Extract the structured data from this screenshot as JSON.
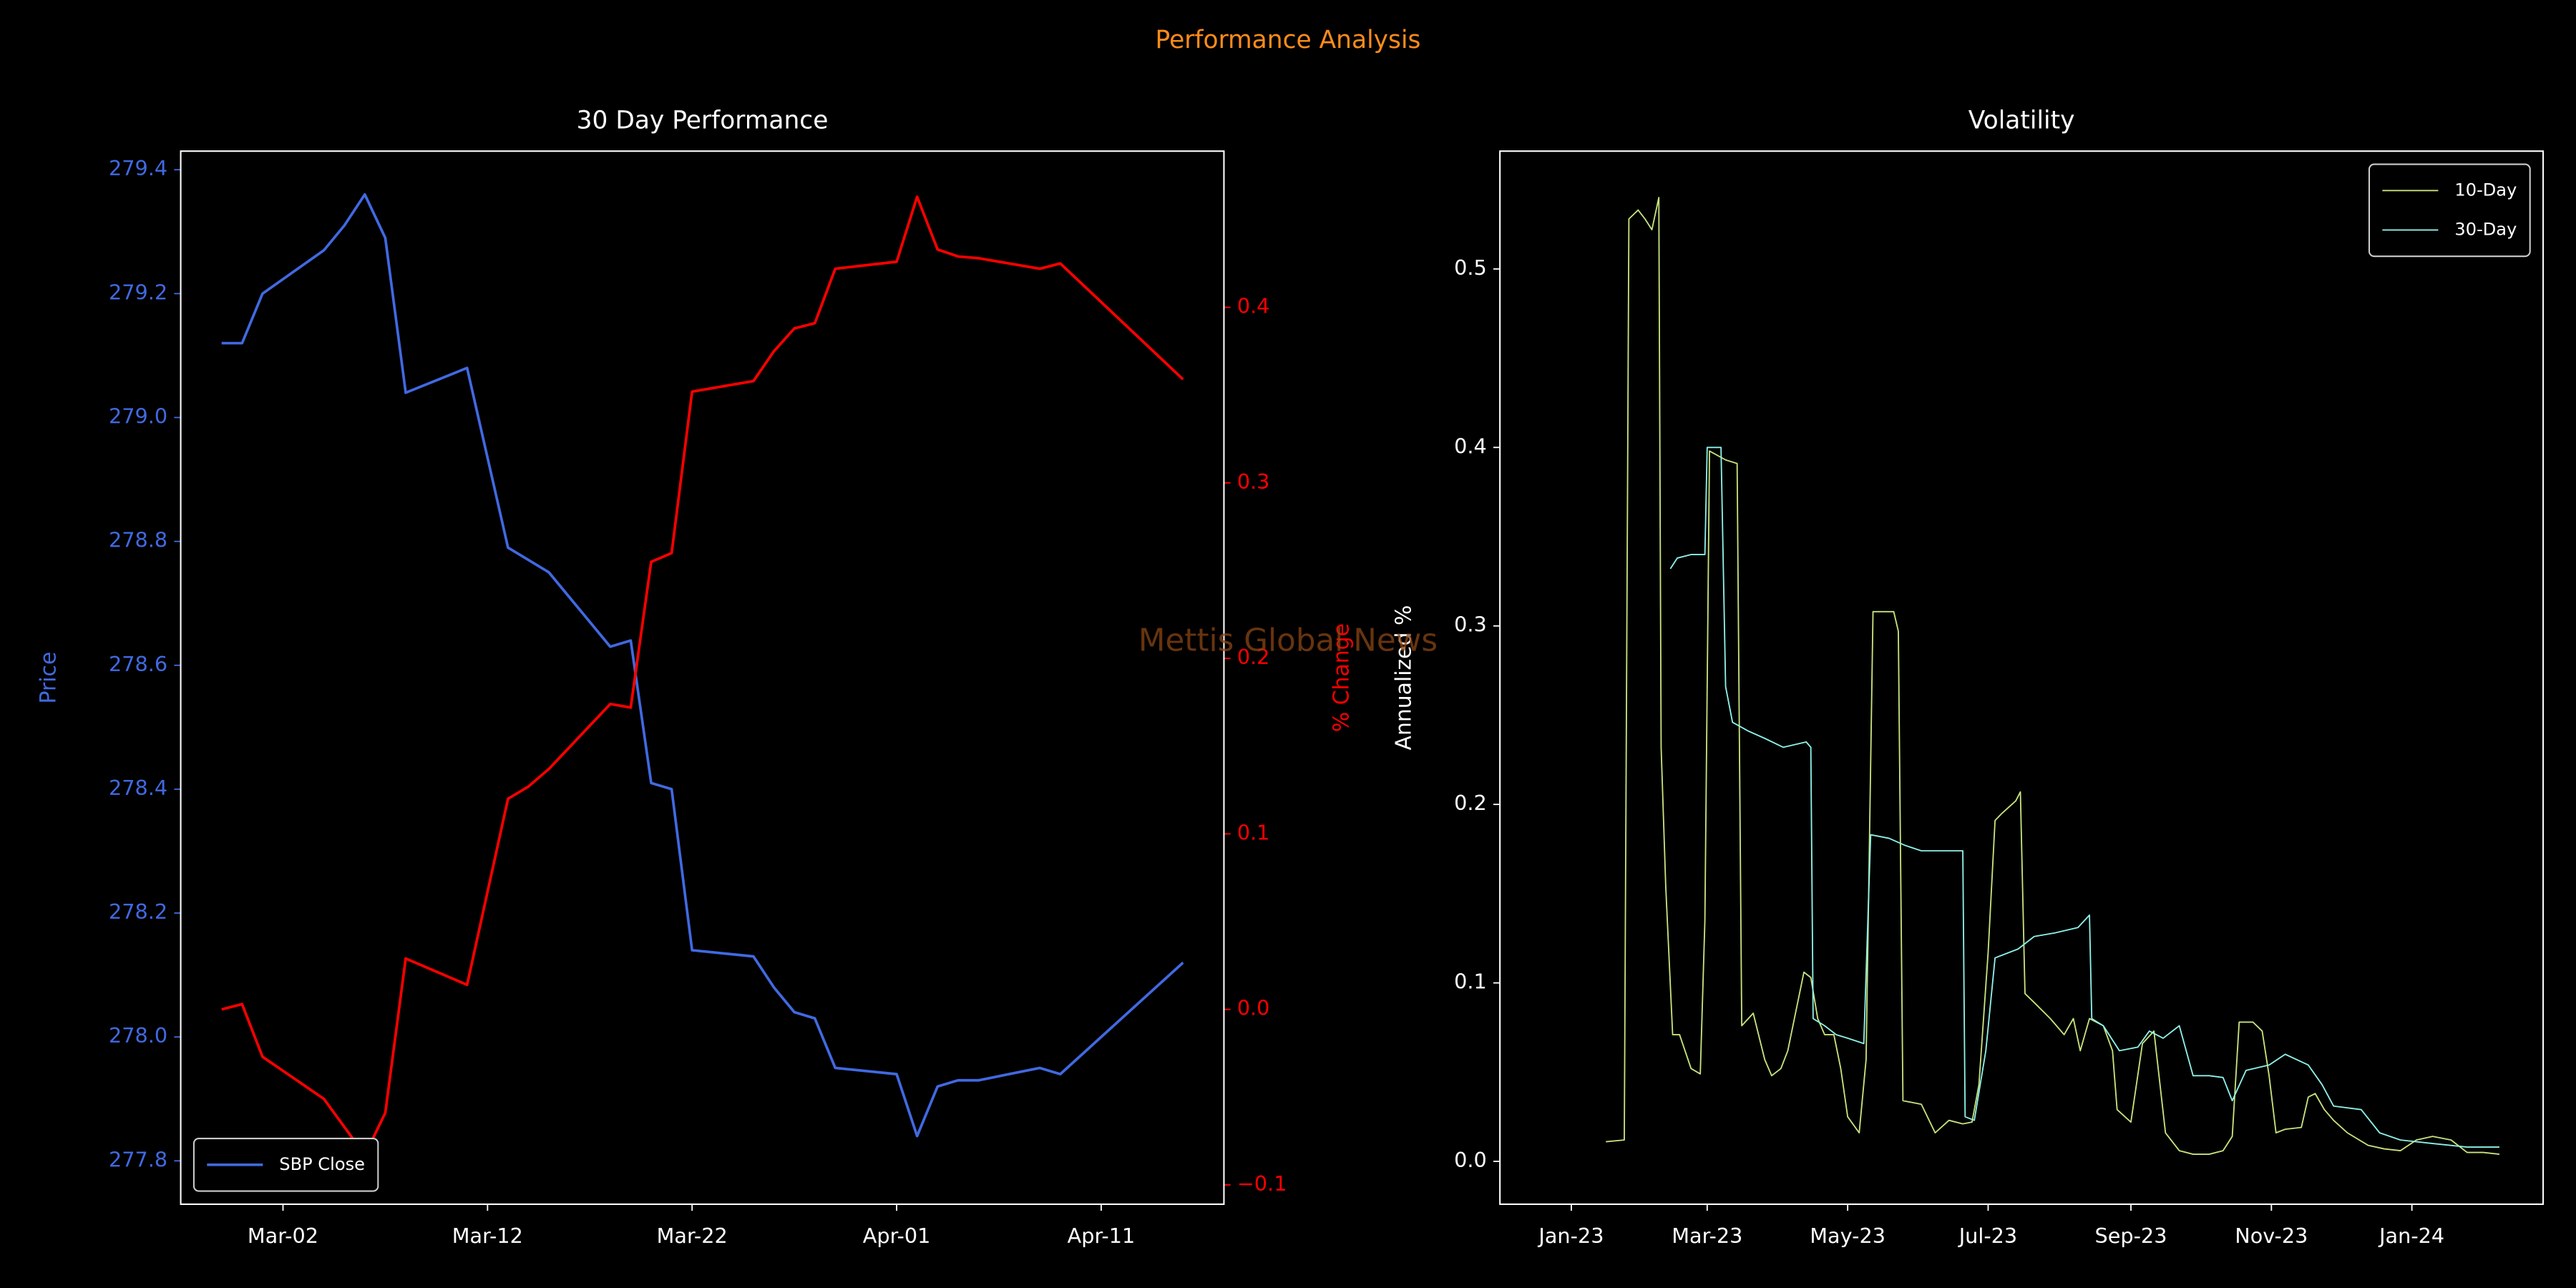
{
  "title": "Performance Analysis",
  "watermark": "Mettis Global News",
  "chart_data": [
    {
      "type": "line",
      "title": "30 Day Performance",
      "ylabel": "Price",
      "y2label": "% Change",
      "legend": "lower left",
      "x": [
        "Feb-28",
        "Feb-29",
        "Mar-01",
        "Mar-04",
        "Mar-05",
        "Mar-06",
        "Mar-07",
        "Mar-08",
        "Mar-11",
        "Mar-13",
        "Mar-14",
        "Mar-15",
        "Mar-18",
        "Mar-19",
        "Mar-20",
        "Mar-21",
        "Mar-22",
        "Mar-25",
        "Mar-26",
        "Mar-27",
        "Mar-28",
        "Mar-29",
        "Apr-01",
        "Apr-02",
        "Apr-03",
        "Apr-04",
        "Apr-05",
        "Apr-08",
        "Apr-09",
        "Apr-15"
      ],
      "series": [
        {
          "name": "SBP Close",
          "color": "#4169e1",
          "values": [
            279.12,
            279.12,
            279.2,
            279.27,
            279.31,
            279.36,
            279.29,
            279.04,
            279.08,
            278.79,
            278.77,
            278.75,
            278.63,
            278.64,
            278.41,
            278.4,
            278.14,
            278.13,
            278.08,
            278.04,
            278.03,
            277.95,
            277.94,
            277.84,
            277.92,
            277.93,
            277.93,
            277.95,
            277.94,
            278.12
          ]
        },
        {
          "color": "#ff0000",
          "axis": "y2",
          "values": [
            0.0,
            0.003,
            -0.027,
            -0.051,
            -0.067,
            -0.083,
            -0.059,
            0.029,
            0.014,
            0.12,
            0.127,
            0.137,
            0.174,
            0.172,
            0.255,
            0.26,
            0.352,
            0.358,
            0.375,
            0.388,
            0.391,
            0.422,
            0.426,
            0.463,
            0.433,
            0.429,
            0.428,
            0.422,
            0.425,
            0.359
          ]
        }
      ],
      "xlim": [
        "Feb-26",
        "Apr-17"
      ],
      "xticks": [
        "Mar-02",
        "Mar-12",
        "Mar-22",
        "Apr-01",
        "Apr-11"
      ],
      "ylim": [
        277.73,
        279.43
      ],
      "yticks": [
        277.8,
        {
          "value": 278,
          "label": "278.0"
        },
        278.2,
        278.4,
        278.6,
        278.8,
        {
          "value": 279,
          "label": "279.0"
        },
        279.2,
        279.4
      ],
      "y2lim": [
        -0.111,
        0.489
      ],
      "y2ticks": [
        {
          "value": -0.1,
          "label": "−0.1"
        },
        {
          "value": 0,
          "label": "0.0"
        },
        0.1,
        0.2,
        0.3,
        0.4
      ]
    },
    {
      "type": "line",
      "title": "Volatility",
      "ylabel": "Annualized %",
      "legend": "upper right",
      "series": [
        {
          "name": "10-Day",
          "color": "#c7e37d",
          "x": [
            "2023-01-16",
            "2023-01-24",
            "2023-01-26",
            "2023-01-30",
            "2023-02-02",
            "2023-02-05",
            "2023-02-08",
            "2023-02-09",
            "2023-02-11",
            "2023-02-14",
            "2023-02-17",
            "2023-02-22",
            "2023-02-26",
            "2023-02-28",
            "2023-03-02",
            "2023-03-09",
            "2023-03-14",
            "2023-03-16",
            "2023-03-21",
            "2023-03-26",
            "2023-03-29",
            "2023-04-02",
            "2023-04-05",
            "2023-04-12",
            "2023-04-15",
            "2023-04-18",
            "2023-04-21",
            "2023-04-25",
            "2023-04-28",
            "2023-05-01",
            "2023-05-06",
            "2023-05-09",
            "2023-05-12",
            "2023-05-21",
            "2023-05-23",
            "2023-05-25",
            "2023-06-02",
            "2023-06-08",
            "2023-06-14",
            "2023-06-20",
            "2023-06-24",
            "2023-06-27",
            "2023-07-01",
            "2023-07-04",
            "2023-07-07",
            "2023-07-13",
            "2023-07-15",
            "2023-07-17",
            "2023-07-21",
            "2023-07-28",
            "2023-08-03",
            "2023-08-07",
            "2023-08-10",
            "2023-08-14",
            "2023-08-20",
            "2023-08-24",
            "2023-08-26",
            "2023-09-01",
            "2023-09-06",
            "2023-09-11",
            "2023-09-16",
            "2023-09-22",
            "2023-09-28",
            "2023-10-05",
            "2023-10-11",
            "2023-10-15",
            "2023-10-18",
            "2023-10-24",
            "2023-10-28",
            "2023-10-31",
            "2023-11-03",
            "2023-11-07",
            "2023-11-14",
            "2023-11-17",
            "2023-11-20",
            "2023-11-24",
            "2023-11-28",
            "2023-12-04",
            "2023-12-13",
            "2023-12-20",
            "2023-12-27",
            "2024-01-03",
            "2024-01-10",
            "2024-01-18",
            "2024-01-25",
            "2024-02-01",
            "2024-02-08"
          ],
          "values": [
            0.011,
            0.012,
            0.528,
            0.533,
            0.528,
            0.522,
            0.54,
            0.232,
            0.154,
            0.071,
            0.071,
            0.052,
            0.049,
            0.135,
            0.398,
            0.393,
            0.391,
            0.076,
            0.083,
            0.057,
            0.048,
            0.052,
            0.062,
            0.106,
            0.103,
            0.08,
            0.071,
            0.071,
            0.052,
            0.025,
            0.016,
            0.057,
            0.308,
            0.308,
            0.297,
            0.034,
            0.032,
            0.016,
            0.023,
            0.021,
            0.022,
            0.043,
            0.117,
            0.191,
            0.195,
            0.202,
            0.207,
            0.094,
            0.089,
            0.08,
            0.071,
            0.08,
            0.062,
            0.08,
            0.076,
            0.062,
            0.029,
            0.022,
            0.066,
            0.073,
            0.016,
            0.006,
            0.004,
            0.004,
            0.006,
            0.014,
            0.078,
            0.078,
            0.073,
            0.048,
            0.016,
            0.018,
            0.019,
            0.036,
            0.038,
            0.029,
            0.023,
            0.016,
            0.009,
            0.007,
            0.006,
            0.012,
            0.014,
            0.012,
            0.005,
            0.005,
            0.004
          ]
        },
        {
          "name": "30-Day",
          "color": "#8df2ea",
          "x": [
            "2023-02-13",
            "2023-02-16",
            "2023-02-22",
            "2023-02-28",
            "2023-03-01",
            "2023-03-07",
            "2023-03-09",
            "2023-03-12",
            "2023-03-19",
            "2023-03-26",
            "2023-04-03",
            "2023-04-13",
            "2023-04-15",
            "2023-04-16",
            "2023-04-21",
            "2023-04-26",
            "2023-05-01",
            "2023-05-08",
            "2023-05-11",
            "2023-05-19",
            "2023-05-26",
            "2023-06-02",
            "2023-06-20",
            "2023-06-21",
            "2023-06-25",
            "2023-06-30",
            "2023-07-04",
            "2023-07-14",
            "2023-07-21",
            "2023-07-30",
            "2023-08-09",
            "2023-08-14",
            "2023-08-15",
            "2023-08-20",
            "2023-08-27",
            "2023-09-04",
            "2023-09-09",
            "2023-09-15",
            "2023-09-22",
            "2023-09-28",
            "2023-10-05",
            "2023-10-11",
            "2023-10-15",
            "2023-10-21",
            "2023-10-31",
            "2023-11-07",
            "2023-11-17",
            "2023-11-23",
            "2023-11-28",
            "2023-12-10",
            "2023-12-18",
            "2023-12-27",
            "2024-01-10",
            "2024-01-25",
            "2024-02-08"
          ],
          "values": [
            0.332,
            0.338,
            0.34,
            0.34,
            0.4,
            0.4,
            0.266,
            0.246,
            0.241,
            0.237,
            0.232,
            0.235,
            0.232,
            0.08,
            0.076,
            0.071,
            0.069,
            0.066,
            0.183,
            0.181,
            0.177,
            0.174,
            0.174,
            0.025,
            0.023,
            0.062,
            0.114,
            0.119,
            0.126,
            0.128,
            0.131,
            0.138,
            0.08,
            0.076,
            0.062,
            0.064,
            0.073,
            0.069,
            0.076,
            0.048,
            0.048,
            0.047,
            0.034,
            0.051,
            0.054,
            0.06,
            0.054,
            0.043,
            0.031,
            0.029,
            0.016,
            0.012,
            0.01,
            0.008,
            0.008
          ]
        }
      ],
      "xlim": [
        "2022-12-01",
        "2024-02-27"
      ],
      "xticks": [
        {
          "value": "2023-01-01",
          "label": "Jan-23"
        },
        {
          "value": "2023-03-01",
          "label": "Mar-23"
        },
        {
          "value": "2023-05-01",
          "label": "May-23"
        },
        {
          "value": "2023-07-01",
          "label": "Jul-23"
        },
        {
          "value": "2023-09-01",
          "label": "Sep-23"
        },
        {
          "value": "2023-11-01",
          "label": "Nov-23"
        },
        {
          "value": "2024-01-01",
          "label": "Jan-24"
        }
      ],
      "ylim": [
        -0.024,
        0.566
      ],
      "yticks": [
        {
          "value": 0,
          "label": "0.0"
        },
        0.1,
        0.2,
        0.3,
        0.4,
        0.5
      ]
    }
  ]
}
